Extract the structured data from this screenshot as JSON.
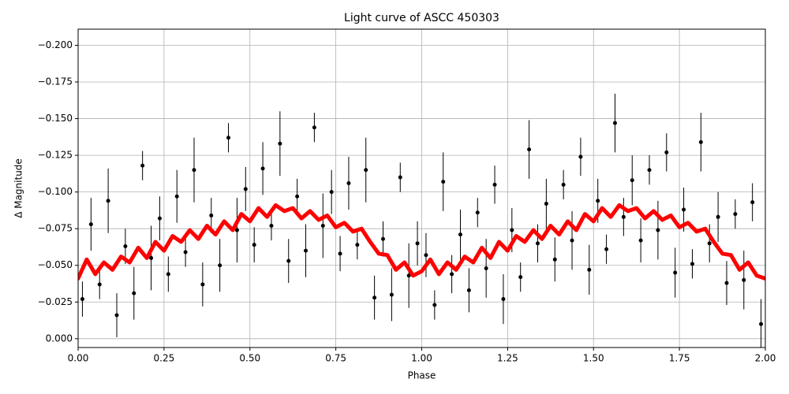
{
  "chart_data": {
    "type": "scatter",
    "title": "Light curve of ASCC 450303",
    "x_label": "Phase",
    "y_label": "Δ Magnitude",
    "xlim": [
      0,
      2
    ],
    "ylim": [
      0.006,
      -0.211
    ],
    "grid": true,
    "xticks": [
      {
        "value": 0,
        "label": "0.00"
      },
      {
        "value": 0.25,
        "label": "0.25"
      },
      {
        "value": 0.5,
        "label": "0.50"
      },
      {
        "value": 0.75,
        "label": "0.75"
      },
      {
        "value": 1,
        "label": "1.00"
      },
      {
        "value": 1.25,
        "label": "1.25"
      },
      {
        "value": 1.5,
        "label": "1.50"
      },
      {
        "value": 1.75,
        "label": "1.75"
      },
      {
        "value": 2,
        "label": "2.00"
      }
    ],
    "yticks": [
      {
        "value": 0,
        "label": "0.000"
      },
      {
        "value": -0.025,
        "label": "−0.025"
      },
      {
        "value": -0.05,
        "label": "−0.050"
      },
      {
        "value": -0.075,
        "label": "−0.075"
      },
      {
        "value": -0.1,
        "label": "−0.100"
      },
      {
        "value": -0.125,
        "label": "−0.125"
      },
      {
        "value": -0.15,
        "label": "−0.150"
      },
      {
        "value": -0.175,
        "label": "−0.175"
      },
      {
        "value": -0.2,
        "label": "−0.200"
      }
    ],
    "series": [
      {
        "type": "scatter",
        "color": "#000000",
        "x": [
          0.0125,
          0.0375,
          0.0625,
          0.0875,
          0.1125,
          0.1375,
          0.1625,
          0.1875,
          0.2125,
          0.2375,
          0.2625,
          0.2875,
          0.3125,
          0.3375,
          0.3625,
          0.3875,
          0.4125,
          0.4375,
          0.4625,
          0.4875,
          0.5125,
          0.5375,
          0.5625,
          0.5875,
          0.6125,
          0.6375,
          0.6625,
          0.6875,
          0.7125,
          0.7375,
          0.7625,
          0.7875,
          0.8125,
          0.8375,
          0.8625,
          0.8875,
          0.9125,
          0.9375,
          0.9625,
          0.9875,
          1.0125,
          1.0375,
          1.0625,
          1.0875,
          1.1125,
          1.1375,
          1.1625,
          1.1875,
          1.2125,
          1.2375,
          1.2625,
          1.2875,
          1.3125,
          1.3375,
          1.3625,
          1.3875,
          1.4125,
          1.4375,
          1.4625,
          1.4875,
          1.5125,
          1.5375,
          1.5625,
          1.5875,
          1.6125,
          1.6375,
          1.6625,
          1.6875,
          1.7125,
          1.7375,
          1.7625,
          1.7875,
          1.8125,
          1.8375,
          1.8625,
          1.8875,
          1.9125,
          1.9375,
          1.9625,
          1.9875
        ],
        "values": [
          -0.027,
          -0.078,
          -0.037,
          -0.094,
          -0.016,
          -0.063,
          -0.031,
          -0.118,
          -0.055,
          -0.082,
          -0.044,
          -0.097,
          -0.059,
          -0.115,
          -0.037,
          -0.084,
          -0.05,
          -0.137,
          -0.074,
          -0.102,
          -0.064,
          -0.116,
          -0.077,
          -0.133,
          -0.053,
          -0.097,
          -0.06,
          -0.144,
          -0.077,
          -0.1,
          -0.058,
          -0.106,
          -0.064,
          -0.115,
          -0.028,
          -0.068,
          -0.03,
          -0.11,
          -0.043,
          -0.065,
          -0.057,
          -0.023,
          -0.107,
          -0.044,
          -0.071,
          -0.033,
          -0.086,
          -0.048,
          -0.105,
          -0.027,
          -0.074,
          -0.042,
          -0.129,
          -0.065,
          -0.092,
          -0.054,
          -0.105,
          -0.067,
          -0.124,
          -0.047,
          -0.094,
          -0.061,
          -0.147,
          -0.083,
          -0.108,
          -0.067,
          -0.115,
          -0.074,
          -0.127,
          -0.045,
          -0.088,
          -0.051,
          -0.134,
          -0.065,
          -0.083,
          -0.038,
          -0.085,
          -0.04,
          -0.093,
          -0.01
        ],
        "errors": [
          0.012,
          0.018,
          0.01,
          0.022,
          0.015,
          0.012,
          0.018,
          0.01,
          0.022,
          0.015,
          0.012,
          0.018,
          0.01,
          0.022,
          0.015,
          0.012,
          0.018,
          0.01,
          0.022,
          0.015,
          0.012,
          0.018,
          0.01,
          0.022,
          0.015,
          0.012,
          0.018,
          0.01,
          0.022,
          0.015,
          0.012,
          0.018,
          0.01,
          0.022,
          0.015,
          0.012,
          0.018,
          0.01,
          0.022,
          0.015,
          0.015,
          0.01,
          0.02,
          0.013,
          0.017,
          0.015,
          0.01,
          0.02,
          0.013,
          0.017,
          0.015,
          0.01,
          0.02,
          0.013,
          0.017,
          0.015,
          0.01,
          0.02,
          0.013,
          0.017,
          0.015,
          0.01,
          0.02,
          0.013,
          0.017,
          0.015,
          0.01,
          0.02,
          0.013,
          0.017,
          0.015,
          0.01,
          0.02,
          0.013,
          0.017,
          0.015,
          0.01,
          0.02,
          0.013,
          0.017
        ]
      },
      {
        "type": "line",
        "color": "#ff0000",
        "x": [
          0,
          0.025,
          0.05,
          0.075,
          0.1,
          0.125,
          0.15,
          0.175,
          0.2,
          0.225,
          0.25,
          0.275,
          0.3,
          0.325,
          0.35,
          0.375,
          0.4,
          0.425,
          0.45,
          0.475,
          0.5,
          0.525,
          0.55,
          0.575,
          0.6,
          0.625,
          0.65,
          0.675,
          0.7,
          0.725,
          0.75,
          0.775,
          0.8,
          0.825,
          0.85,
          0.875,
          0.9,
          0.925,
          0.95,
          0.975,
          1,
          1.025,
          1.05,
          1.075,
          1.1,
          1.125,
          1.15,
          1.175,
          1.2,
          1.225,
          1.25,
          1.275,
          1.3,
          1.325,
          1.35,
          1.375,
          1.4,
          1.425,
          1.45,
          1.475,
          1.5,
          1.525,
          1.55,
          1.575,
          1.6,
          1.625,
          1.65,
          1.675,
          1.7,
          1.725,
          1.75,
          1.775,
          1.8,
          1.825,
          1.85,
          1.875,
          1.9,
          1.925,
          1.95,
          1.975,
          2
        ],
        "values": [
          -0.041,
          -0.054,
          -0.044,
          -0.052,
          -0.047,
          -0.056,
          -0.052,
          -0.062,
          -0.055,
          -0.066,
          -0.06,
          -0.07,
          -0.066,
          -0.074,
          -0.068,
          -0.077,
          -0.071,
          -0.08,
          -0.074,
          -0.085,
          -0.08,
          -0.089,
          -0.083,
          -0.091,
          -0.087,
          -0.089,
          -0.082,
          -0.087,
          -0.081,
          -0.084,
          -0.076,
          -0.079,
          -0.073,
          -0.075,
          -0.066,
          -0.058,
          -0.057,
          -0.047,
          -0.052,
          -0.043,
          -0.046,
          -0.054,
          -0.044,
          -0.052,
          -0.047,
          -0.056,
          -0.052,
          -0.062,
          -0.055,
          -0.066,
          -0.06,
          -0.07,
          -0.066,
          -0.074,
          -0.068,
          -0.077,
          -0.071,
          -0.08,
          -0.074,
          -0.085,
          -0.08,
          -0.089,
          -0.083,
          -0.091,
          -0.087,
          -0.089,
          -0.082,
          -0.087,
          -0.081,
          -0.084,
          -0.076,
          -0.079,
          -0.073,
          -0.075,
          -0.066,
          -0.058,
          -0.057,
          -0.047,
          -0.052,
          -0.043,
          -0.041
        ]
      }
    ]
  }
}
